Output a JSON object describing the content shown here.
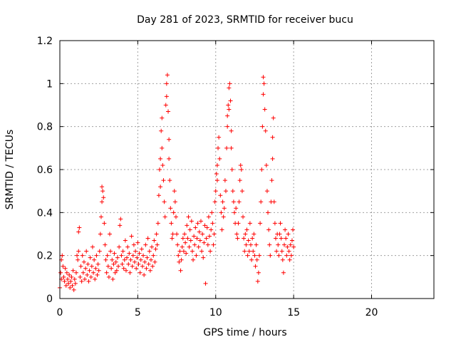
{
  "chart_data": {
    "type": "scatter",
    "title": "Day 281 of 2023, SRMTID for receiver bucu",
    "xlabel": "GPS time / hours",
    "ylabel": "SRMTID / TECUs",
    "xlim": [
      0,
      24
    ],
    "ylim": [
      0,
      1.2
    ],
    "x_ticks": [
      0,
      5,
      10,
      15,
      20
    ],
    "y_ticks": [
      0,
      0.2,
      0.4,
      0.6,
      0.8,
      1,
      1.2
    ],
    "x_tick_labels": [
      "0",
      "5",
      "10",
      "15",
      "20"
    ],
    "y_tick_labels": [
      "0",
      "0.2",
      "0.4",
      "0.6",
      "0.8",
      "1",
      "1.2"
    ],
    "grid": true,
    "marker": "+",
    "color": "#ff0000",
    "series": [
      {
        "name": "SRMTID",
        "points": [
          [
            0.0,
            0.05
          ],
          [
            0.05,
            0.12
          ],
          [
            0.1,
            0.18
          ],
          [
            0.1,
            0.09
          ],
          [
            0.15,
            0.2
          ],
          [
            0.2,
            0.15
          ],
          [
            0.25,
            0.1
          ],
          [
            0.3,
            0.08
          ],
          [
            0.35,
            0.14
          ],
          [
            0.4,
            0.06
          ],
          [
            0.45,
            0.12
          ],
          [
            0.5,
            0.09
          ],
          [
            0.55,
            0.07
          ],
          [
            0.6,
            0.11
          ],
          [
            0.65,
            0.05
          ],
          [
            0.7,
            0.08
          ],
          [
            0.75,
            0.1
          ],
          [
            0.8,
            0.06
          ],
          [
            0.85,
            0.13
          ],
          [
            0.9,
            0.04
          ],
          [
            0.95,
            0.09
          ],
          [
            1.0,
            0.07
          ],
          [
            1.05,
            0.12
          ],
          [
            1.1,
            0.2
          ],
          [
            1.15,
            0.18
          ],
          [
            1.2,
            0.22
          ],
          [
            1.2,
            0.31
          ],
          [
            1.25,
            0.33
          ],
          [
            1.3,
            0.1
          ],
          [
            1.35,
            0.15
          ],
          [
            1.4,
            0.08
          ],
          [
            1.45,
            0.2
          ],
          [
            1.5,
            0.12
          ],
          [
            1.55,
            0.17
          ],
          [
            1.6,
            0.09
          ],
          [
            1.65,
            0.14
          ],
          [
            1.7,
            0.22
          ],
          [
            1.75,
            0.11
          ],
          [
            1.8,
            0.16
          ],
          [
            1.85,
            0.08
          ],
          [
            1.9,
            0.13
          ],
          [
            1.95,
            0.19
          ],
          [
            2.0,
            0.1
          ],
          [
            2.05,
            0.15
          ],
          [
            2.1,
            0.24
          ],
          [
            2.15,
            0.12
          ],
          [
            2.2,
            0.18
          ],
          [
            2.25,
            0.09
          ],
          [
            2.3,
            0.14
          ],
          [
            2.35,
            0.2
          ],
          [
            2.4,
            0.11
          ],
          [
            2.45,
            0.16
          ],
          [
            2.5,
            0.13
          ],
          [
            2.55,
            0.22
          ],
          [
            2.6,
            0.3
          ],
          [
            2.65,
            0.38
          ],
          [
            2.7,
            0.45
          ],
          [
            2.7,
            0.52
          ],
          [
            2.75,
            0.5
          ],
          [
            2.8,
            0.47
          ],
          [
            2.85,
            0.35
          ],
          [
            2.9,
            0.25
          ],
          [
            2.95,
            0.18
          ],
          [
            3.0,
            0.12
          ],
          [
            3.05,
            0.2
          ],
          [
            3.1,
            0.15
          ],
          [
            3.15,
            0.1
          ],
          [
            3.2,
            0.3
          ],
          [
            3.25,
            0.22
          ],
          [
            3.3,
            0.14
          ],
          [
            3.35,
            0.18
          ],
          [
            3.4,
            0.09
          ],
          [
            3.45,
            0.16
          ],
          [
            3.5,
            0.21
          ],
          [
            3.55,
            0.12
          ],
          [
            3.6,
            0.17
          ],
          [
            3.65,
            0.13
          ],
          [
            3.7,
            0.19
          ],
          [
            3.75,
            0.15
          ],
          [
            3.8,
            0.24
          ],
          [
            3.85,
            0.34
          ],
          [
            3.9,
            0.37
          ],
          [
            3.95,
            0.2
          ],
          [
            4.0,
            0.16
          ],
          [
            4.05,
            0.22
          ],
          [
            4.1,
            0.14
          ],
          [
            4.15,
            0.18
          ],
          [
            4.2,
            0.27
          ],
          [
            4.25,
            0.13
          ],
          [
            4.3,
            0.19
          ],
          [
            4.35,
            0.24
          ],
          [
            4.4,
            0.16
          ],
          [
            4.45,
            0.21
          ],
          [
            4.5,
            0.12
          ],
          [
            4.55,
            0.18
          ],
          [
            4.6,
            0.29
          ],
          [
            4.65,
            0.15
          ],
          [
            4.7,
            0.2
          ],
          [
            4.75,
            0.25
          ],
          [
            4.8,
            0.17
          ],
          [
            4.85,
            0.22
          ],
          [
            4.9,
            0.14
          ],
          [
            4.95,
            0.19
          ],
          [
            5.0,
            0.26
          ],
          [
            5.05,
            0.16
          ],
          [
            5.1,
            0.21
          ],
          [
            5.15,
            0.12
          ],
          [
            5.2,
            0.18
          ],
          [
            5.25,
            0.23
          ],
          [
            5.3,
            0.15
          ],
          [
            5.35,
            0.2
          ],
          [
            5.4,
            0.11
          ],
          [
            5.45,
            0.17
          ],
          [
            5.5,
            0.25
          ],
          [
            5.55,
            0.14
          ],
          [
            5.6,
            0.19
          ],
          [
            5.65,
            0.28
          ],
          [
            5.7,
            0.16
          ],
          [
            5.75,
            0.22
          ],
          [
            5.8,
            0.13
          ],
          [
            5.85,
            0.18
          ],
          [
            5.9,
            0.24
          ],
          [
            5.95,
            0.15
          ],
          [
            6.0,
            0.2
          ],
          [
            6.05,
            0.27
          ],
          [
            6.1,
            0.17
          ],
          [
            6.15,
            0.23
          ],
          [
            6.2,
            0.3
          ],
          [
            6.25,
            0.25
          ],
          [
            6.3,
            0.35
          ],
          [
            6.35,
            0.48
          ],
          [
            6.4,
            0.6
          ],
          [
            6.45,
            0.52
          ],
          [
            6.45,
            0.65
          ],
          [
            6.5,
            0.78
          ],
          [
            6.55,
            0.7
          ],
          [
            6.55,
            0.84
          ],
          [
            6.6,
            0.62
          ],
          [
            6.65,
            0.55
          ],
          [
            6.7,
            0.45
          ],
          [
            6.75,
            0.38
          ],
          [
            6.8,
            0.9
          ],
          [
            6.85,
            0.94
          ],
          [
            6.85,
            1.0
          ],
          [
            6.9,
            1.04
          ],
          [
            6.95,
            0.87
          ],
          [
            7.0,
            0.74
          ],
          [
            7.0,
            0.65
          ],
          [
            7.05,
            0.55
          ],
          [
            7.1,
            0.42
          ],
          [
            7.15,
            0.35
          ],
          [
            7.2,
            0.28
          ],
          [
            7.25,
            0.3
          ],
          [
            7.3,
            0.4
          ],
          [
            7.35,
            0.5
          ],
          [
            7.4,
            0.45
          ],
          [
            7.45,
            0.38
          ],
          [
            7.5,
            0.3
          ],
          [
            7.55,
            0.25
          ],
          [
            7.6,
            0.2
          ],
          [
            7.65,
            0.17
          ],
          [
            7.7,
            0.22
          ],
          [
            7.75,
            0.13
          ],
          [
            7.8,
            0.18
          ],
          [
            7.85,
            0.24
          ],
          [
            7.9,
            0.28
          ],
          [
            7.95,
            0.22
          ],
          [
            8.0,
            0.3
          ],
          [
            8.05,
            0.26
          ],
          [
            8.1,
            0.21
          ],
          [
            8.15,
            0.34
          ],
          [
            8.2,
            0.28
          ],
          [
            8.25,
            0.38
          ],
          [
            8.3,
            0.24
          ],
          [
            8.35,
            0.32
          ],
          [
            8.4,
            0.27
          ],
          [
            8.45,
            0.36
          ],
          [
            8.5,
            0.22
          ],
          [
            8.55,
            0.18
          ],
          [
            8.6,
            0.29
          ],
          [
            8.65,
            0.25
          ],
          [
            8.7,
            0.33
          ],
          [
            8.75,
            0.2
          ],
          [
            8.8,
            0.28
          ],
          [
            8.85,
            0.35
          ],
          [
            8.9,
            0.24
          ],
          [
            8.95,
            0.31
          ],
          [
            9.0,
            0.27
          ],
          [
            9.05,
            0.36
          ],
          [
            9.1,
            0.22
          ],
          [
            9.15,
            0.3
          ],
          [
            9.2,
            0.19
          ],
          [
            9.25,
            0.26
          ],
          [
            9.3,
            0.34
          ],
          [
            9.35,
            0.07
          ],
          [
            9.4,
            0.28
          ],
          [
            9.45,
            0.33
          ],
          [
            9.5,
            0.25
          ],
          [
            9.55,
            0.38
          ],
          [
            9.6,
            0.29
          ],
          [
            9.65,
            0.22
          ],
          [
            9.7,
            0.32
          ],
          [
            9.75,
            0.4
          ],
          [
            9.8,
            0.35
          ],
          [
            9.85,
            0.25
          ],
          [
            9.9,
            0.3
          ],
          [
            9.95,
            0.45
          ],
          [
            10.0,
            0.5
          ],
          [
            10.05,
            0.58
          ],
          [
            10.1,
            0.62
          ],
          [
            10.1,
            0.55
          ],
          [
            10.15,
            0.7
          ],
          [
            10.2,
            0.75
          ],
          [
            10.25,
            0.65
          ],
          [
            10.3,
            0.48
          ],
          [
            10.35,
            0.4
          ],
          [
            10.4,
            0.32
          ],
          [
            10.45,
            0.45
          ],
          [
            10.5,
            0.38
          ],
          [
            10.55,
            0.42
          ],
          [
            10.6,
            0.55
          ],
          [
            10.65,
            0.5
          ],
          [
            10.7,
            0.7
          ],
          [
            10.75,
            0.8
          ],
          [
            10.75,
            0.85
          ],
          [
            10.8,
            0.9
          ],
          [
            10.85,
            0.88
          ],
          [
            10.85,
            0.98
          ],
          [
            10.9,
            1.0
          ],
          [
            10.95,
            0.92
          ],
          [
            11.0,
            0.78
          ],
          [
            11.0,
            0.7
          ],
          [
            11.05,
            0.6
          ],
          [
            11.1,
            0.5
          ],
          [
            11.15,
            0.45
          ],
          [
            11.2,
            0.4
          ],
          [
            11.25,
            0.35
          ],
          [
            11.3,
            0.42
          ],
          [
            11.35,
            0.3
          ],
          [
            11.4,
            0.28
          ],
          [
            11.45,
            0.35
          ],
          [
            11.5,
            0.45
          ],
          [
            11.55,
            0.55
          ],
          [
            11.6,
            0.62
          ],
          [
            11.65,
            0.6
          ],
          [
            11.7,
            0.5
          ],
          [
            11.75,
            0.38
          ],
          [
            11.8,
            0.28
          ],
          [
            11.85,
            0.22
          ],
          [
            11.9,
            0.3
          ],
          [
            11.95,
            0.25
          ],
          [
            12.0,
            0.32
          ],
          [
            12.05,
            0.2
          ],
          [
            12.1,
            0.27
          ],
          [
            12.15,
            0.22
          ],
          [
            12.2,
            0.35
          ],
          [
            12.25,
            0.25
          ],
          [
            12.3,
            0.18
          ],
          [
            12.35,
            0.28
          ],
          [
            12.4,
            0.22
          ],
          [
            12.45,
            0.3
          ],
          [
            12.5,
            0.2
          ],
          [
            12.55,
            0.15
          ],
          [
            12.6,
            0.25
          ],
          [
            12.65,
            0.18
          ],
          [
            12.7,
            0.08
          ],
          [
            12.75,
            0.12
          ],
          [
            12.8,
            0.2
          ],
          [
            12.85,
            0.35
          ],
          [
            12.9,
            0.45
          ],
          [
            12.95,
            0.6
          ],
          [
            13.0,
            0.8
          ],
          [
            13.05,
            0.95
          ],
          [
            13.05,
            1.03
          ],
          [
            13.1,
            1.0
          ],
          [
            13.15,
            0.88
          ],
          [
            13.2,
            0.78
          ],
          [
            13.25,
            0.62
          ],
          [
            13.3,
            0.5
          ],
          [
            13.35,
            0.4
          ],
          [
            13.4,
            0.32
          ],
          [
            13.45,
            0.25
          ],
          [
            13.5,
            0.2
          ],
          [
            13.55,
            0.45
          ],
          [
            13.6,
            0.55
          ],
          [
            13.65,
            0.65
          ],
          [
            13.65,
            0.75
          ],
          [
            13.7,
            0.84
          ],
          [
            13.75,
            0.45
          ],
          [
            13.8,
            0.35
          ],
          [
            13.85,
            0.28
          ],
          [
            13.9,
            0.22
          ],
          [
            13.95,
            0.3
          ],
          [
            14.0,
            0.25
          ],
          [
            14.05,
            0.2
          ],
          [
            14.1,
            0.3
          ],
          [
            14.15,
            0.35
          ],
          [
            14.2,
            0.28
          ],
          [
            14.25,
            0.22
          ],
          [
            14.3,
            0.18
          ],
          [
            14.35,
            0.12
          ],
          [
            14.4,
            0.25
          ],
          [
            14.45,
            0.32
          ],
          [
            14.5,
            0.28
          ],
          [
            14.55,
            0.2
          ],
          [
            14.6,
            0.24
          ],
          [
            14.65,
            0.3
          ],
          [
            14.7,
            0.22
          ],
          [
            14.75,
            0.18
          ],
          [
            14.8,
            0.25
          ],
          [
            14.85,
            0.2
          ],
          [
            14.9,
            0.27
          ],
          [
            14.95,
            0.32
          ],
          [
            15.0,
            0.24
          ]
        ]
      }
    ]
  }
}
